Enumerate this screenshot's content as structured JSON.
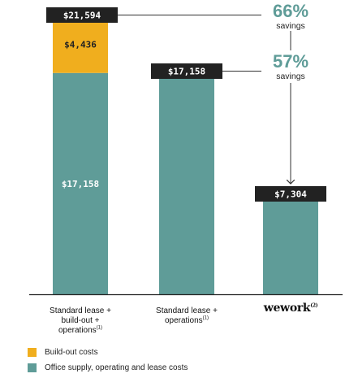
{
  "chart_data": {
    "type": "bar",
    "categories": [
      "Standard lease + build-out + operations",
      "Standard lease + operations",
      "wework"
    ],
    "category_display": [
      {
        "lines": [
          "Standard lease +",
          "build-out +",
          "operations"
        ],
        "note": "(1)",
        "brand": false
      },
      {
        "lines": [
          "Standard lease +",
          "operations"
        ],
        "note": "(1)",
        "brand": false
      },
      {
        "lines": [
          "wework"
        ],
        "note": "(2)",
        "brand": true
      }
    ],
    "series": [
      {
        "name": "Office supply, operating and lease costs",
        "color": "#5f9c98",
        "values": [
          17158,
          17158,
          7304
        ]
      },
      {
        "name": "Build-out costs",
        "color": "#f0ae1e",
        "values": [
          4436,
          0,
          0
        ]
      }
    ],
    "segment_labels": [
      {
        "category_index": 0,
        "series_index": 0,
        "text": "$17,158"
      },
      {
        "category_index": 0,
        "series_index": 1,
        "text": "$4,436"
      }
    ],
    "total_labels": [
      "$21,594",
      "$17,158",
      "$7,304"
    ],
    "savings": [
      {
        "pct": "66%",
        "word": "savings",
        "from_index": 0,
        "to_index": 2
      },
      {
        "pct": "57%",
        "word": "savings",
        "from_index": 1,
        "to_index": 2
      }
    ],
    "ylim": [
      0,
      22500
    ],
    "grid": false,
    "legend_position": "bottom-left",
    "colors": {
      "callout_bg": "#222222",
      "callout_text": "#ffffff",
      "savings_text": "#5f9c98",
      "arrow": "#333333",
      "axis": "#222222"
    }
  },
  "legend": {
    "items": [
      {
        "label": "Build-out costs",
        "color": "#f0ae1e"
      },
      {
        "label": "Office supply, operating and lease costs",
        "color": "#5f9c98"
      }
    ]
  }
}
